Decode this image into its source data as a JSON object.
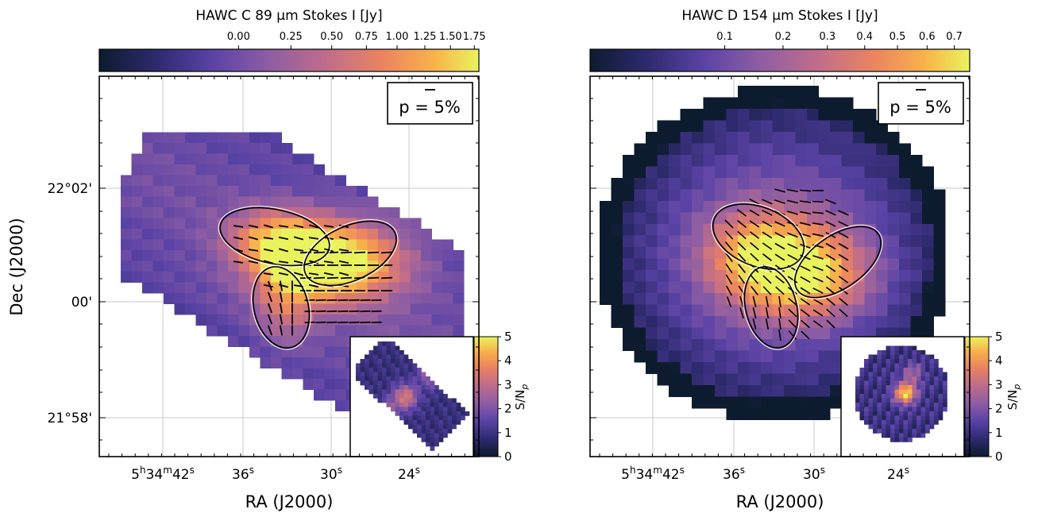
{
  "chart_data": [
    {
      "type": "heatmap",
      "panel": "left",
      "colorbar": {
        "title": "HAWC C 89 μm Stokes I [Jy]",
        "ticks": [
          "0.00",
          "0.25",
          "0.50",
          "0.75",
          "1.00",
          "1.25",
          "1.50",
          "1.75"
        ],
        "tick_values": [
          0.0,
          0.25,
          0.5,
          0.75,
          1.0,
          1.25,
          1.5,
          1.75
        ],
        "scale": "sqrt",
        "range": [
          -0.28,
          1.8
        ]
      },
      "xlabel": "RA (J2000)",
      "ylabel": "Dec (J2000)",
      "x_ticks": [
        {
          "main": "5",
          "sup1": "h",
          "mid": "34",
          "sup2": "m",
          "last": "42",
          "sup3": "s"
        },
        {
          "main": "36",
          "sup1": "s"
        },
        {
          "main": "30",
          "sup1": "s"
        },
        {
          "main": "24",
          "sup1": "s"
        }
      ],
      "y_ticks": [
        "22°02'",
        "00'",
        "21°58'"
      ],
      "grid": true,
      "legend_box": "p = 5%",
      "inset": {
        "label": "S/N",
        "label_sub": "p",
        "ticks": [
          "0",
          "1",
          "2",
          "3",
          "4",
          "5"
        ],
        "range": [
          0,
          5
        ]
      }
    },
    {
      "type": "heatmap",
      "panel": "right",
      "colorbar": {
        "title": "HAWC D 154 μm Stokes I [Jy]",
        "ticks": [
          "0.1",
          "0.2",
          "0.3",
          "0.4",
          "0.5",
          "0.6",
          "0.7"
        ],
        "tick_values": [
          0.1,
          0.2,
          0.3,
          0.4,
          0.5,
          0.6,
          0.7
        ],
        "scale": "sqrt",
        "range": [
          0.005,
          0.76
        ]
      },
      "xlabel": "RA (J2000)",
      "ylabel": "",
      "x_ticks": [
        {
          "main": "5",
          "sup1": "h",
          "mid": "34",
          "sup2": "m",
          "last": "42",
          "sup3": "s"
        },
        {
          "main": "36",
          "sup1": "s"
        },
        {
          "main": "30",
          "sup1": "s"
        },
        {
          "main": "24",
          "sup1": "s"
        }
      ],
      "y_ticks": [],
      "grid": true,
      "legend_box": "p = 5%",
      "inset": {
        "label": "S/N",
        "label_sub": "p",
        "ticks": [
          "0",
          "1",
          "2",
          "3",
          "4",
          "5"
        ],
        "range": [
          0,
          5
        ]
      }
    }
  ]
}
